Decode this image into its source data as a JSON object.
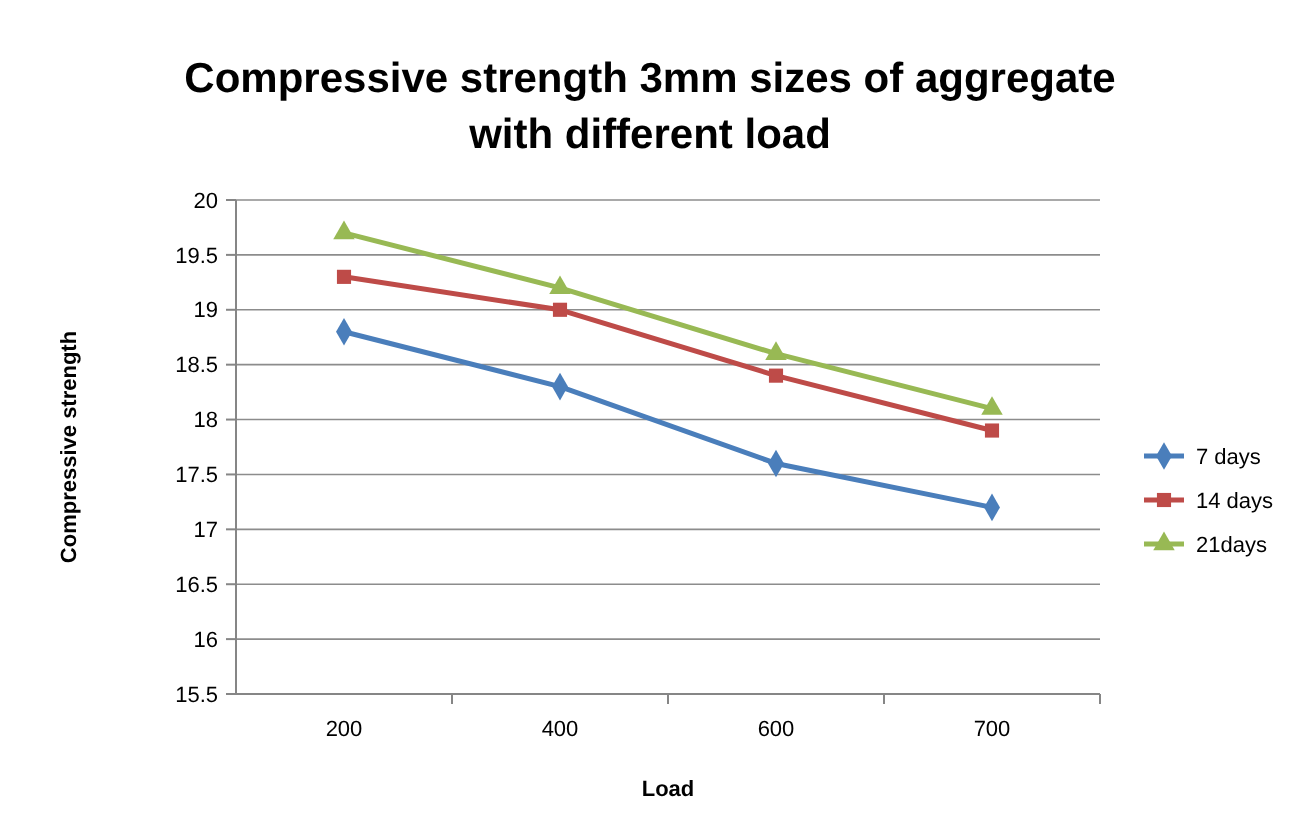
{
  "chart_data": {
    "type": "line",
    "title": "Compressive strength 3mm sizes of aggregate with different load",
    "xlabel": "Load",
    "ylabel": "Compressive strength",
    "categories": [
      "200",
      "400",
      "600",
      "700"
    ],
    "ylim": [
      15.5,
      20
    ],
    "yticks": [
      15.5,
      16,
      16.5,
      17,
      17.5,
      18,
      18.5,
      19,
      19.5,
      20
    ],
    "grid": "y",
    "legend": "right",
    "series": [
      {
        "name": "7 days",
        "color": "#4a7ebb",
        "marker": "diamond",
        "values": [
          18.8,
          18.3,
          17.6,
          17.2
        ]
      },
      {
        "name": "14 days",
        "color": "#be4b48",
        "marker": "square",
        "values": [
          19.3,
          19.0,
          18.4,
          17.9
        ]
      },
      {
        "name": "21days",
        "color": "#98b954",
        "marker": "triangle",
        "values": [
          19.7,
          19.2,
          18.6,
          18.1
        ]
      }
    ]
  }
}
